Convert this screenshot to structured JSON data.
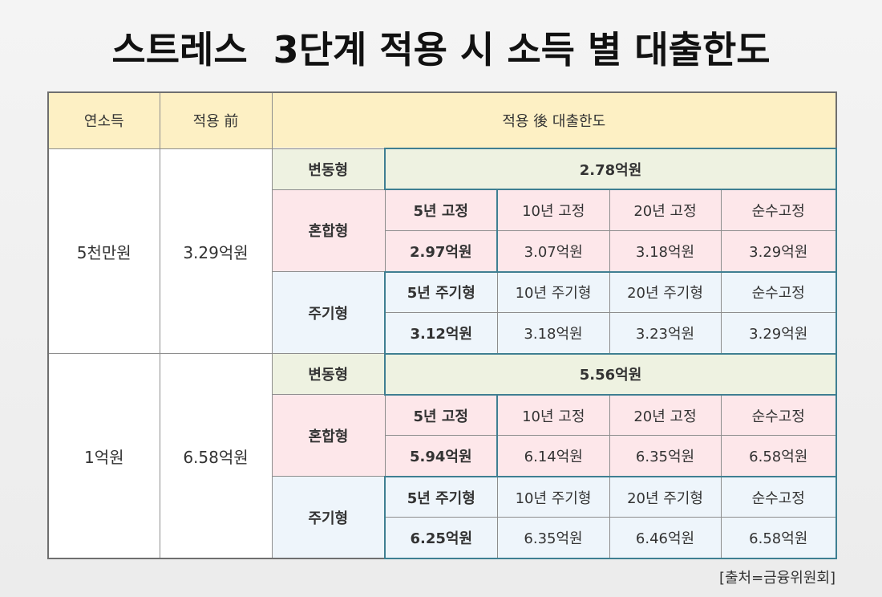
{
  "title": "스트레스  3단계 적용 시 소득 별 대출한도",
  "headers": {
    "income": "연소득",
    "before": "적용 前",
    "after": "적용 後 대출한도"
  },
  "groups": [
    {
      "income": "5천만원",
      "before": "3.29억원",
      "variable": {
        "label": "변동형",
        "value": "2.78억원"
      },
      "mixed": {
        "label": "혼합형",
        "terms": [
          "5년 고정",
          "10년 고정",
          "20년 고정",
          "순수고정"
        ],
        "values": [
          "2.97억원",
          "3.07억원",
          "3.18억원",
          "3.29억원"
        ]
      },
      "periodic": {
        "label": "주기형",
        "terms": [
          "5년 주기형",
          "10년 주기형",
          "20년 주기형",
          "순수고정"
        ],
        "values": [
          "3.12억원",
          "3.18억원",
          "3.23억원",
          "3.29억원"
        ]
      }
    },
    {
      "income": "1억원",
      "before": "6.58억원",
      "variable": {
        "label": "변동형",
        "value": "5.56억원"
      },
      "mixed": {
        "label": "혼합형",
        "terms": [
          "5년 고정",
          "10년 고정",
          "20년 고정",
          "순수고정"
        ],
        "values": [
          "5.94억원",
          "6.14억원",
          "6.35억원",
          "6.58억원"
        ]
      },
      "periodic": {
        "label": "주기형",
        "terms": [
          "5년 주기형",
          "10년 주기형",
          "20년 주기형",
          "순수고정"
        ],
        "values": [
          "6.25억원",
          "6.35억원",
          "6.46억원",
          "6.58억원"
        ]
      }
    }
  ],
  "source": "[출처=금융위원회]",
  "colors": {
    "header_bg": "#fdf0c4",
    "variable_bg": "#eef2e1",
    "mixed_bg": "#fde7ea",
    "periodic_bg": "#eef5fb",
    "highlight_border": "#3f7f92"
  }
}
